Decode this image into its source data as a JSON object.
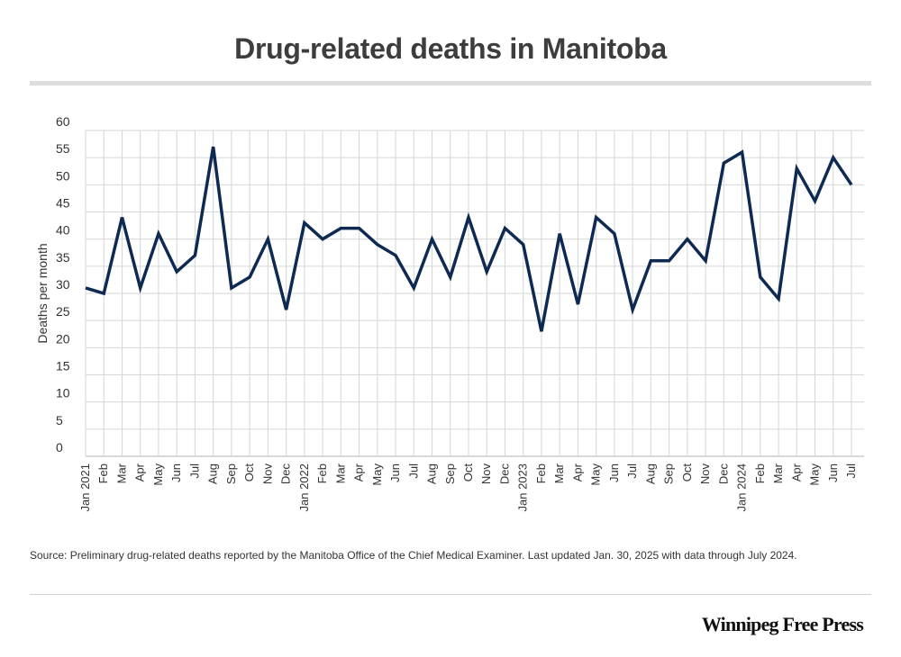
{
  "header": {
    "title": "Drug-related deaths in Manitoba"
  },
  "footer": {
    "source": "Source: Preliminary drug-related deaths reported by the Manitoba Office of the Chief Medical Examiner. Last updated Jan. 30, 2025 with data through July 2024.",
    "brand": "Winnipeg Free Press"
  },
  "colors": {
    "line": "#0f2a52",
    "grid": "#d6d6d6",
    "rule": "#dddddd"
  },
  "chart_data": {
    "type": "line",
    "title": "Drug-related deaths in Manitoba",
    "xlabel": "",
    "ylabel": "Deaths per month",
    "ylim": [
      0,
      60
    ],
    "yticks": [
      0,
      5,
      10,
      15,
      20,
      25,
      30,
      35,
      40,
      45,
      50,
      55,
      60
    ],
    "grid": true,
    "legend": "none",
    "categories": [
      "Jan 2021",
      "Feb",
      "Mar",
      "Apr",
      "May",
      "Jun",
      "Jul",
      "Aug",
      "Sep",
      "Oct",
      "Nov",
      "Dec",
      "Jan 2022",
      "Feb",
      "Mar",
      "Apr",
      "May",
      "Jun",
      "Jul",
      "Aug",
      "Sep",
      "Oct",
      "Nov",
      "Dec",
      "Jan 2023",
      "Feb",
      "Mar",
      "Apr",
      "May",
      "Jun",
      "Jul",
      "Aug",
      "Sep",
      "Oct",
      "Nov",
      "Dec",
      "Jan 2024",
      "Feb",
      "Mar",
      "Apr",
      "May",
      "Jun",
      "Jul"
    ],
    "series": [
      {
        "values": [
          31,
          30,
          44,
          31,
          41,
          34,
          37,
          57,
          31,
          33,
          40,
          27,
          43,
          40,
          42,
          42,
          39,
          37,
          31,
          40,
          33,
          44,
          34,
          42,
          39,
          23,
          41,
          28,
          44,
          41,
          27,
          36,
          36,
          40,
          36,
          54,
          56,
          33,
          29,
          53,
          47,
          55,
          50
        ]
      }
    ]
  }
}
